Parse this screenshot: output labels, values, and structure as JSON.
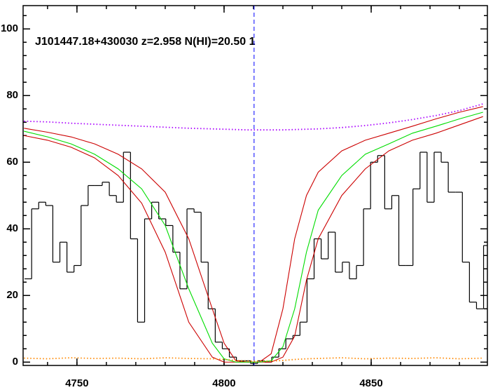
{
  "chart_data": {
    "type": "line",
    "title": "J101447.18+430030 z=2.958 N(HI)=20.50 1",
    "xlim": [
      4731.7,
      4889.5
    ],
    "ylim": [
      -1,
      107
    ],
    "xticks": [
      4750,
      4800,
      4850
    ],
    "yticks": [
      0,
      20,
      40,
      60,
      80,
      100
    ],
    "minor_ticks": 5,
    "vlines": [
      {
        "x": 4810.2,
        "color": "#0000ff",
        "style": "dashed"
      }
    ],
    "series": [
      {
        "color": "#000000",
        "style": "steps",
        "x": [
          4733.4,
          4735.8,
          4738.2,
          4740.6,
          4743.0,
          4745.4,
          4747.8,
          4750.2,
          4752.6,
          4755.0,
          4757.4,
          4759.8,
          4762.2,
          4764.6,
          4767.0,
          4769.4,
          4771.8,
          4774.2,
          4776.6,
          4779.0,
          4781.4,
          4783.8,
          4786.2,
          4788.6,
          4791.0,
          4793.4,
          4795.8,
          4798.2,
          4800.6,
          4803.0,
          4805.4,
          4807.8,
          4810.2,
          4812.6,
          4815.0,
          4817.4,
          4819.8,
          4822.2,
          4824.6,
          4827.0,
          4829.4,
          4831.8,
          4834.2,
          4836.6,
          4839.0,
          4841.4,
          4843.8,
          4846.2,
          4848.6,
          4851.0,
          4853.4,
          4855.8,
          4858.2,
          4860.6,
          4863.0,
          4865.4,
          4867.8,
          4870.2,
          4872.6,
          4875.0,
          4877.4,
          4879.8,
          4882.2,
          4884.6,
          4887.0,
          4889.4
        ],
        "values": [
          25,
          46,
          48,
          47,
          30,
          36,
          27,
          29,
          47,
          53,
          53,
          54,
          50,
          48,
          63,
          37,
          12,
          43,
          48,
          43,
          41,
          33,
          22,
          46,
          45,
          30,
          16,
          6,
          4,
          1.5,
          0.4,
          0.4,
          -0.4,
          0.4,
          0,
          1.5,
          4,
          7,
          8,
          12,
          25,
          37,
          31,
          39,
          27,
          30,
          25,
          29,
          46,
          60,
          62,
          46,
          50,
          29,
          29,
          52,
          63,
          48,
          63,
          60,
          51,
          51,
          30,
          18,
          16,
          35
        ]
      },
      {
        "color": "#cc0000",
        "style": "solid",
        "x": [
          4732,
          4740,
          4748,
          4756,
          4764,
          4772,
          4780,
          4788,
          4796,
          4800,
          4804,
          4808,
          4812,
          4816,
          4820,
          4824,
          4828,
          4832,
          4840,
          4848,
          4856,
          4864,
          4872,
          4880,
          4888
        ],
        "values": [
          70.2,
          69,
          67.6,
          65.5,
          62.4,
          58,
          51,
          37,
          16,
          5.7,
          0.4,
          0,
          0,
          2.5,
          16,
          37,
          50,
          57,
          63.4,
          66.6,
          68.7,
          70.8,
          73,
          75,
          76.7
        ]
      },
      {
        "color": "#cc0000",
        "style": "solid",
        "x": [
          4732,
          4740,
          4748,
          4756,
          4764,
          4772,
          4780,
          4788,
          4796,
          4800,
          4804,
          4808,
          4812,
          4816,
          4820,
          4824,
          4828,
          4832,
          4840,
          4848,
          4856,
          4864,
          4872,
          4880,
          4888
        ],
        "values": [
          68,
          66.6,
          64.5,
          61.3,
          56,
          47.7,
          33,
          12,
          1.5,
          0,
          0,
          0,
          0,
          0,
          1.5,
          7.8,
          24.6,
          37,
          50,
          58,
          63.4,
          66.6,
          68.7,
          71.2,
          73.7
        ]
      },
      {
        "color": "#00dd00",
        "style": "solid",
        "x": [
          4732,
          4740,
          4748,
          4756,
          4764,
          4772,
          4780,
          4788,
          4796,
          4800,
          4804,
          4808,
          4812,
          4816,
          4820,
          4824,
          4828,
          4832,
          4840,
          4848,
          4856,
          4864,
          4872,
          4880,
          4888
        ],
        "values": [
          69.3,
          67.6,
          65.5,
          62.4,
          58,
          52,
          41,
          22,
          5.7,
          1,
          0,
          0,
          0,
          0.4,
          4.6,
          16,
          33,
          45.6,
          56,
          62.4,
          65.5,
          68.7,
          70.8,
          73,
          75
        ]
      },
      {
        "color": "#aa00ff",
        "style": "dotted",
        "x": [
          4732,
          4740,
          4748,
          4756,
          4764,
          4772,
          4780,
          4788,
          4796,
          4800,
          4804,
          4808,
          4812,
          4816,
          4820,
          4824,
          4828,
          4832,
          4840,
          4848,
          4856,
          4864,
          4872,
          4880,
          4888
        ],
        "values": [
          72.3,
          72.1,
          71.7,
          71.4,
          71.1,
          70.8,
          70.5,
          70.2,
          70,
          69.9,
          69.8,
          69.7,
          69.7,
          69.7,
          69.7,
          69.8,
          69.9,
          70,
          70.4,
          71,
          71.8,
          72.8,
          74,
          75.5,
          77.5
        ]
      },
      {
        "color": "#ff8800",
        "style": "dotted",
        "x": [
          4732,
          4740,
          4748,
          4756,
          4764,
          4772,
          4780,
          4788,
          4796,
          4800,
          4804,
          4808,
          4812,
          4816,
          4820,
          4824,
          4828,
          4832,
          4840,
          4848,
          4856,
          4864,
          4872,
          4880,
          4888
        ],
        "values": [
          1.2,
          1.0,
          1.3,
          1.1,
          1.2,
          1.0,
          1.3,
          1.1,
          1.0,
          0.8,
          0.5,
          0.3,
          0.3,
          0.3,
          0.5,
          0.8,
          1.0,
          1.1,
          1.3,
          1.0,
          1.2,
          1.1,
          1.3,
          1.0,
          1.2
        ]
      }
    ]
  }
}
